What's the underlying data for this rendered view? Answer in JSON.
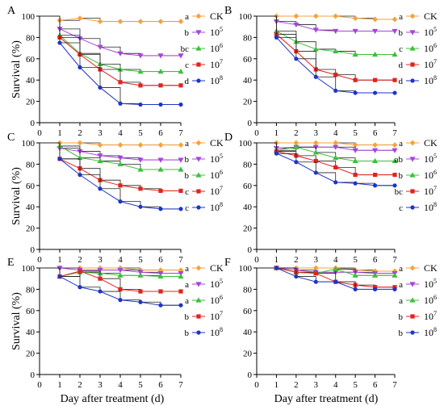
{
  "colors": {
    "CK": "#f5a23a",
    "1e5": "#a545d9",
    "1e6": "#3dbf3d",
    "1e7": "#e0241e",
    "1e8": "#1f35c4",
    "step": "#222222",
    "axis": "#000000"
  },
  "legend": [
    {
      "key": "CK",
      "base": "CK",
      "exp": "",
      "marker": "diamond"
    },
    {
      "key": "1e5",
      "base": "10",
      "exp": "5",
      "marker": "triangle-down"
    },
    {
      "key": "1e6",
      "base": "10",
      "exp": "6",
      "marker": "triangle-up"
    },
    {
      "key": "1e7",
      "base": "10",
      "exp": "7",
      "marker": "square"
    },
    {
      "key": "1e8",
      "base": "10",
      "exp": "8",
      "marker": "circle"
    }
  ],
  "axes": {
    "ylabel": "Survival (%)",
    "xlabel": "Day after treatment (d)",
    "xticks": [
      "0",
      "1",
      "2",
      "3",
      "4",
      "5",
      "6",
      "7"
    ],
    "yticks": [
      "0",
      "20",
      "40",
      "60",
      "80",
      "100"
    ]
  },
  "chart_data": [
    {
      "panel": "A",
      "type": "line",
      "xlim": [
        0,
        7
      ],
      "ylim": [
        0,
        100
      ],
      "xlabel": "",
      "ylabel": "Survival (%)",
      "letters": [
        "a",
        "b",
        "bc",
        "c",
        "d"
      ],
      "series": [
        {
          "key": "CK",
          "name": "CK",
          "x": [
            1,
            2,
            3,
            4,
            5,
            6,
            7
          ],
          "y": [
            96,
            98,
            95,
            95,
            95,
            95,
            95
          ]
        },
        {
          "key": "1e5",
          "name": "10^5",
          "x": [
            1,
            2,
            3,
            4,
            5,
            6,
            7
          ],
          "y": [
            88,
            79,
            71,
            65,
            63,
            63,
            63
          ]
        },
        {
          "key": "1e6",
          "name": "10^6",
          "x": [
            1,
            2,
            3,
            4,
            5,
            6,
            7
          ],
          "y": [
            82,
            65,
            55,
            50,
            48,
            48,
            48
          ]
        },
        {
          "key": "1e7",
          "name": "10^7",
          "x": [
            1,
            2,
            3,
            4,
            5,
            6,
            7
          ],
          "y": [
            80,
            64,
            50,
            38,
            35,
            35,
            35
          ]
        },
        {
          "key": "1e8",
          "name": "10^8",
          "x": [
            1,
            2,
            3,
            4,
            5,
            6,
            7
          ],
          "y": [
            75,
            52,
            33,
            18,
            17,
            17,
            17
          ]
        }
      ]
    },
    {
      "panel": "B",
      "type": "line",
      "xlim": [
        0,
        7
      ],
      "ylim": [
        0,
        100
      ],
      "xlabel": "",
      "ylabel": "",
      "letters": [
        "a",
        "b",
        "c",
        "d",
        "d"
      ],
      "series": [
        {
          "key": "CK",
          "name": "CK",
          "x": [
            1,
            2,
            3,
            4,
            5,
            6,
            7
          ],
          "y": [
            100,
            100,
            100,
            100,
            98,
            97,
            97
          ]
        },
        {
          "key": "1e5",
          "name": "10^5",
          "x": [
            1,
            2,
            3,
            4,
            5,
            6,
            7
          ],
          "y": [
            95,
            92,
            87,
            86,
            86,
            86,
            86
          ]
        },
        {
          "key": "1e6",
          "name": "10^6",
          "x": [
            1,
            2,
            3,
            4,
            5,
            6,
            7
          ],
          "y": [
            86,
            76,
            69,
            67,
            64,
            64,
            64
          ]
        },
        {
          "key": "1e7",
          "name": "10^7",
          "x": [
            1,
            2,
            3,
            4,
            5,
            6,
            7
          ],
          "y": [
            83,
            67,
            50,
            45,
            40,
            40,
            40
          ]
        },
        {
          "key": "1e8",
          "name": "10^8",
          "x": [
            1,
            2,
            3,
            4,
            5,
            6,
            7
          ],
          "y": [
            80,
            60,
            43,
            30,
            28,
            28,
            28
          ]
        }
      ]
    },
    {
      "panel": "C",
      "type": "line",
      "xlim": [
        0,
        7
      ],
      "ylim": [
        0,
        100
      ],
      "xlabel": "",
      "ylabel": "Survival (%)",
      "letters": [
        "a",
        "b",
        "b",
        "c",
        "c"
      ],
      "series": [
        {
          "key": "CK",
          "name": "CK",
          "x": [
            1,
            2,
            3,
            4,
            5,
            6,
            7
          ],
          "y": [
            100,
            100,
            98,
            98,
            98,
            98,
            98
          ]
        },
        {
          "key": "1e5",
          "name": "10^5",
          "x": [
            1,
            2,
            3,
            4,
            5,
            6,
            7
          ],
          "y": [
            95,
            92,
            88,
            86,
            84,
            84,
            84
          ]
        },
        {
          "key": "1e6",
          "name": "10^6",
          "x": [
            1,
            2,
            3,
            4,
            5,
            6,
            7
          ],
          "y": [
            97,
            86,
            83,
            80,
            75,
            75,
            75
          ]
        },
        {
          "key": "1e7",
          "name": "10^7",
          "x": [
            1,
            2,
            3,
            4,
            5,
            6,
            7
          ],
          "y": [
            85,
            76,
            65,
            60,
            57,
            55,
            55
          ]
        },
        {
          "key": "1e8",
          "name": "10^8",
          "x": [
            1,
            2,
            3,
            4,
            5,
            6,
            7
          ],
          "y": [
            85,
            70,
            57,
            45,
            40,
            38,
            38
          ]
        }
      ]
    },
    {
      "panel": "D",
      "type": "line",
      "xlim": [
        0,
        7
      ],
      "ylim": [
        0,
        100
      ],
      "xlabel": "",
      "ylabel": "",
      "letters": [
        "a",
        "ab",
        "b",
        "bc",
        "c"
      ],
      "series": [
        {
          "key": "CK",
          "name": "CK",
          "x": [
            1,
            2,
            3,
            4,
            5,
            6,
            7
          ],
          "y": [
            100,
            100,
            100,
            100,
            98,
            98,
            98
          ]
        },
        {
          "key": "1e5",
          "name": "10^5",
          "x": [
            1,
            2,
            3,
            4,
            5,
            6,
            7
          ],
          "y": [
            95,
            96,
            96,
            96,
            93,
            93,
            93
          ]
        },
        {
          "key": "1e6",
          "name": "10^6",
          "x": [
            1,
            2,
            3,
            4,
            5,
            6,
            7
          ],
          "y": [
            93,
            96,
            91,
            86,
            83,
            83,
            83
          ]
        },
        {
          "key": "1e7",
          "name": "10^7",
          "x": [
            1,
            2,
            3,
            4,
            5,
            6,
            7
          ],
          "y": [
            92,
            88,
            83,
            77,
            70,
            70,
            70
          ]
        },
        {
          "key": "1e8",
          "name": "10^8",
          "x": [
            1,
            2,
            3,
            4,
            5,
            6,
            7
          ],
          "y": [
            90,
            82,
            72,
            63,
            62,
            60,
            60
          ]
        }
      ]
    },
    {
      "panel": "E",
      "type": "line",
      "xlim": [
        0,
        7
      ],
      "ylim": [
        0,
        100
      ],
      "xlabel": "Day after treatment (d)",
      "ylabel": "Survival (%)",
      "letters": [
        "a",
        "a",
        "a",
        "b",
        "b"
      ],
      "series": [
        {
          "key": "CK",
          "name": "CK",
          "x": [
            1,
            2,
            3,
            4,
            5,
            6,
            7
          ],
          "y": [
            100,
            100,
            100,
            100,
            98,
            98,
            98
          ]
        },
        {
          "key": "1e5",
          "name": "10^5",
          "x": [
            1,
            2,
            3,
            4,
            5,
            6,
            7
          ],
          "y": [
            100,
            98,
            98,
            98,
            96,
            95,
            95
          ]
        },
        {
          "key": "1e6",
          "name": "10^6",
          "x": [
            1,
            2,
            3,
            4,
            5,
            6,
            7
          ],
          "y": [
            92,
            96,
            95,
            93,
            93,
            92,
            92
          ]
        },
        {
          "key": "1e7",
          "name": "10^7",
          "x": [
            1,
            2,
            3,
            4,
            5,
            6,
            7
          ],
          "y": [
            92,
            97,
            90,
            80,
            78,
            78,
            78
          ]
        },
        {
          "key": "1e8",
          "name": "10^8",
          "x": [
            1,
            2,
            3,
            4,
            5,
            6,
            7
          ],
          "y": [
            92,
            82,
            78,
            70,
            68,
            65,
            65
          ]
        }
      ]
    },
    {
      "panel": "F",
      "type": "line",
      "xlim": [
        0,
        7
      ],
      "ylim": [
        0,
        100
      ],
      "xlabel": "Day after treatment (d)",
      "ylabel": "",
      "letters": [
        "a",
        "a",
        "a",
        "b",
        "b"
      ],
      "series": [
        {
          "key": "CK",
          "name": "CK",
          "x": [
            1,
            2,
            3,
            4,
            5,
            6,
            7
          ],
          "y": [
            100,
            100,
            100,
            100,
            98,
            97,
            97
          ]
        },
        {
          "key": "1e5",
          "name": "10^5",
          "x": [
            1,
            2,
            3,
            4,
            5,
            6,
            7
          ],
          "y": [
            100,
            98,
            96,
            96,
            96,
            95,
            95
          ]
        },
        {
          "key": "1e6",
          "name": "10^6",
          "x": [
            1,
            2,
            3,
            4,
            5,
            6,
            7
          ],
          "y": [
            100,
            96,
            95,
            99,
            93,
            93,
            93
          ]
        },
        {
          "key": "1e7",
          "name": "10^7",
          "x": [
            1,
            2,
            3,
            4,
            5,
            6,
            7
          ],
          "y": [
            100,
            96,
            95,
            87,
            84,
            82,
            82
          ]
        },
        {
          "key": "1e8",
          "name": "10^8",
          "x": [
            1,
            2,
            3,
            4,
            5,
            6,
            7
          ],
          "y": [
            100,
            92,
            87,
            87,
            80,
            80,
            80
          ]
        }
      ]
    }
  ]
}
